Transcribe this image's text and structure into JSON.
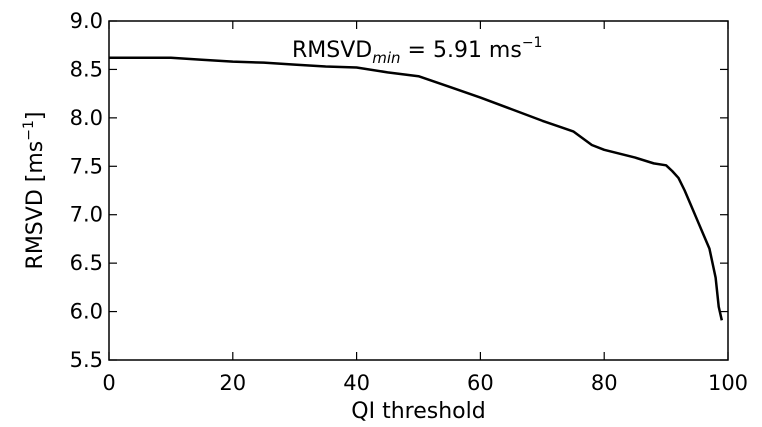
{
  "chart_data": {
    "type": "line",
    "xlabel": "QI threshold",
    "ylabel": {
      "main": "RMSVD [ms",
      "sup": "−1",
      "close": "]"
    },
    "xlim": [
      0,
      100
    ],
    "ylim": [
      5.5,
      9.0
    ],
    "xticks": [
      "0",
      "20",
      "40",
      "60",
      "80",
      "100"
    ],
    "yticks": [
      "5.5",
      "6.0",
      "6.5",
      "7.0",
      "7.5",
      "8.0",
      "8.5",
      "9.0"
    ],
    "grid": false,
    "annotation": {
      "main": "RMSVD",
      "sub": "min",
      "eq": " = 5.91 ms",
      "sup": "−1"
    },
    "series": [
      {
        "color": "#000000",
        "x": [
          0,
          5,
          10,
          15,
          20,
          25,
          30,
          35,
          40,
          45,
          50,
          55,
          60,
          65,
          70,
          75,
          78,
          80,
          85,
          88,
          90,
          91,
          92,
          93,
          94,
          95,
          96,
          97,
          98,
          98.5,
          99
        ],
        "y": [
          8.62,
          8.62,
          8.62,
          8.6,
          8.58,
          8.57,
          8.55,
          8.53,
          8.52,
          8.47,
          8.43,
          8.32,
          8.21,
          8.09,
          7.97,
          7.86,
          7.72,
          7.67,
          7.59,
          7.53,
          7.51,
          7.45,
          7.38,
          7.25,
          7.1,
          6.95,
          6.8,
          6.65,
          6.35,
          6.05,
          5.91
        ]
      }
    ]
  }
}
